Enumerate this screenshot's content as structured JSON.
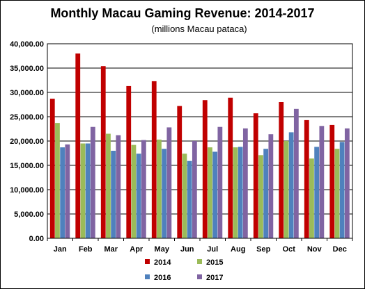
{
  "chart_data": {
    "type": "bar",
    "title": "Monthly Macau Gaming Revenue: 2014-2017",
    "subtitle": "(millions Macau pataca)",
    "xlabel": "",
    "ylabel": "",
    "ylim": [
      0,
      40000
    ],
    "y_ticks": [
      "0.00",
      "5,000.00",
      "10,000.00",
      "15,000.00",
      "20,000.00",
      "25,000.00",
      "30,000.00",
      "35,000.00",
      "40,000.00"
    ],
    "y_tick_values": [
      0,
      5000,
      10000,
      15000,
      20000,
      25000,
      30000,
      35000,
      40000
    ],
    "grid": true,
    "legend_position": "bottom",
    "categories": [
      "Jan",
      "Feb",
      "Mar",
      "Apr",
      "May",
      "Jun",
      "Jul",
      "Aug",
      "Sep",
      "Oct",
      "Nov",
      "Dec"
    ],
    "series": [
      {
        "name": "2014",
        "color": "#c00000",
        "values": [
          28700,
          38000,
          35400,
          31300,
          32300,
          27200,
          28400,
          28900,
          25700,
          28000,
          24300,
          23300
        ]
      },
      {
        "name": "2015",
        "color": "#9bbb59",
        "values": [
          23700,
          19500,
          21500,
          19200,
          20300,
          17400,
          18700,
          18700,
          17100,
          20000,
          16400,
          18400
        ]
      },
      {
        "name": "2016",
        "color": "#4f81bd",
        "values": [
          18700,
          19500,
          18000,
          17400,
          18400,
          15900,
          17800,
          18800,
          18400,
          21800,
          18800,
          19800
        ]
      },
      {
        "name": "2017",
        "color": "#8064a2",
        "values": [
          19300,
          22900,
          21200,
          20200,
          22800,
          20000,
          22900,
          22600,
          21400,
          26600,
          23100,
          22600
        ]
      }
    ]
  }
}
